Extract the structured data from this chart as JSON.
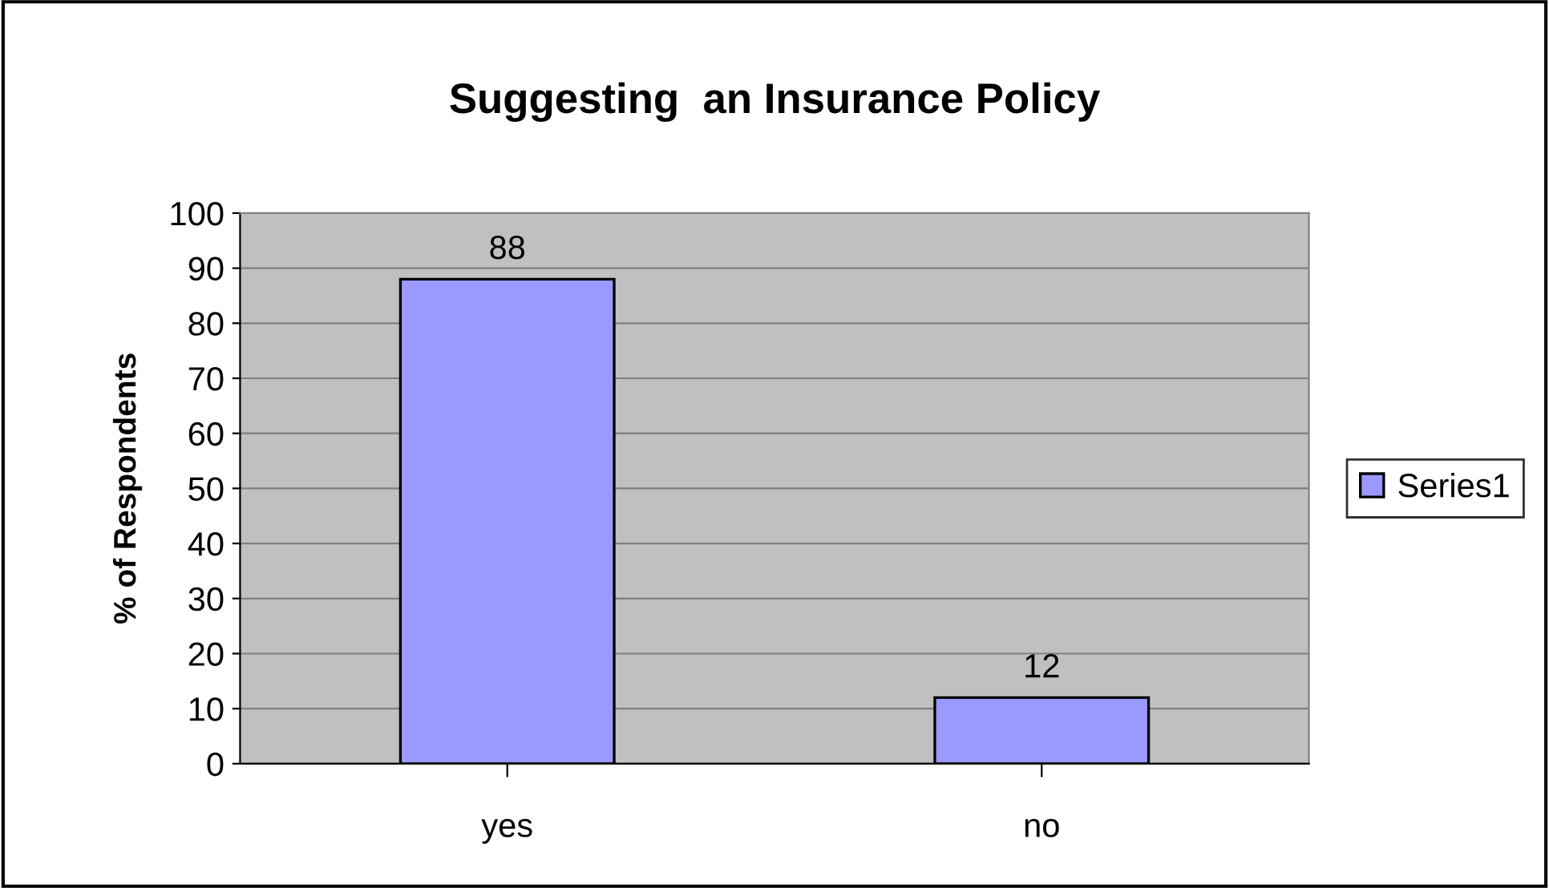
{
  "chart_data": {
    "type": "bar",
    "title": "Suggesting  an Insurance Policy",
    "ylabel": "% of Respondents",
    "categories": [
      "yes",
      "no"
    ],
    "series": [
      {
        "name": "Series1",
        "color": "#9999ff",
        "values": [
          88,
          12
        ]
      }
    ],
    "ylim": [
      0,
      100
    ],
    "yticks": [
      0,
      10,
      20,
      30,
      40,
      50,
      60,
      70,
      80,
      90,
      100
    ],
    "grid": "y",
    "legend": "right",
    "data_labels": true
  }
}
